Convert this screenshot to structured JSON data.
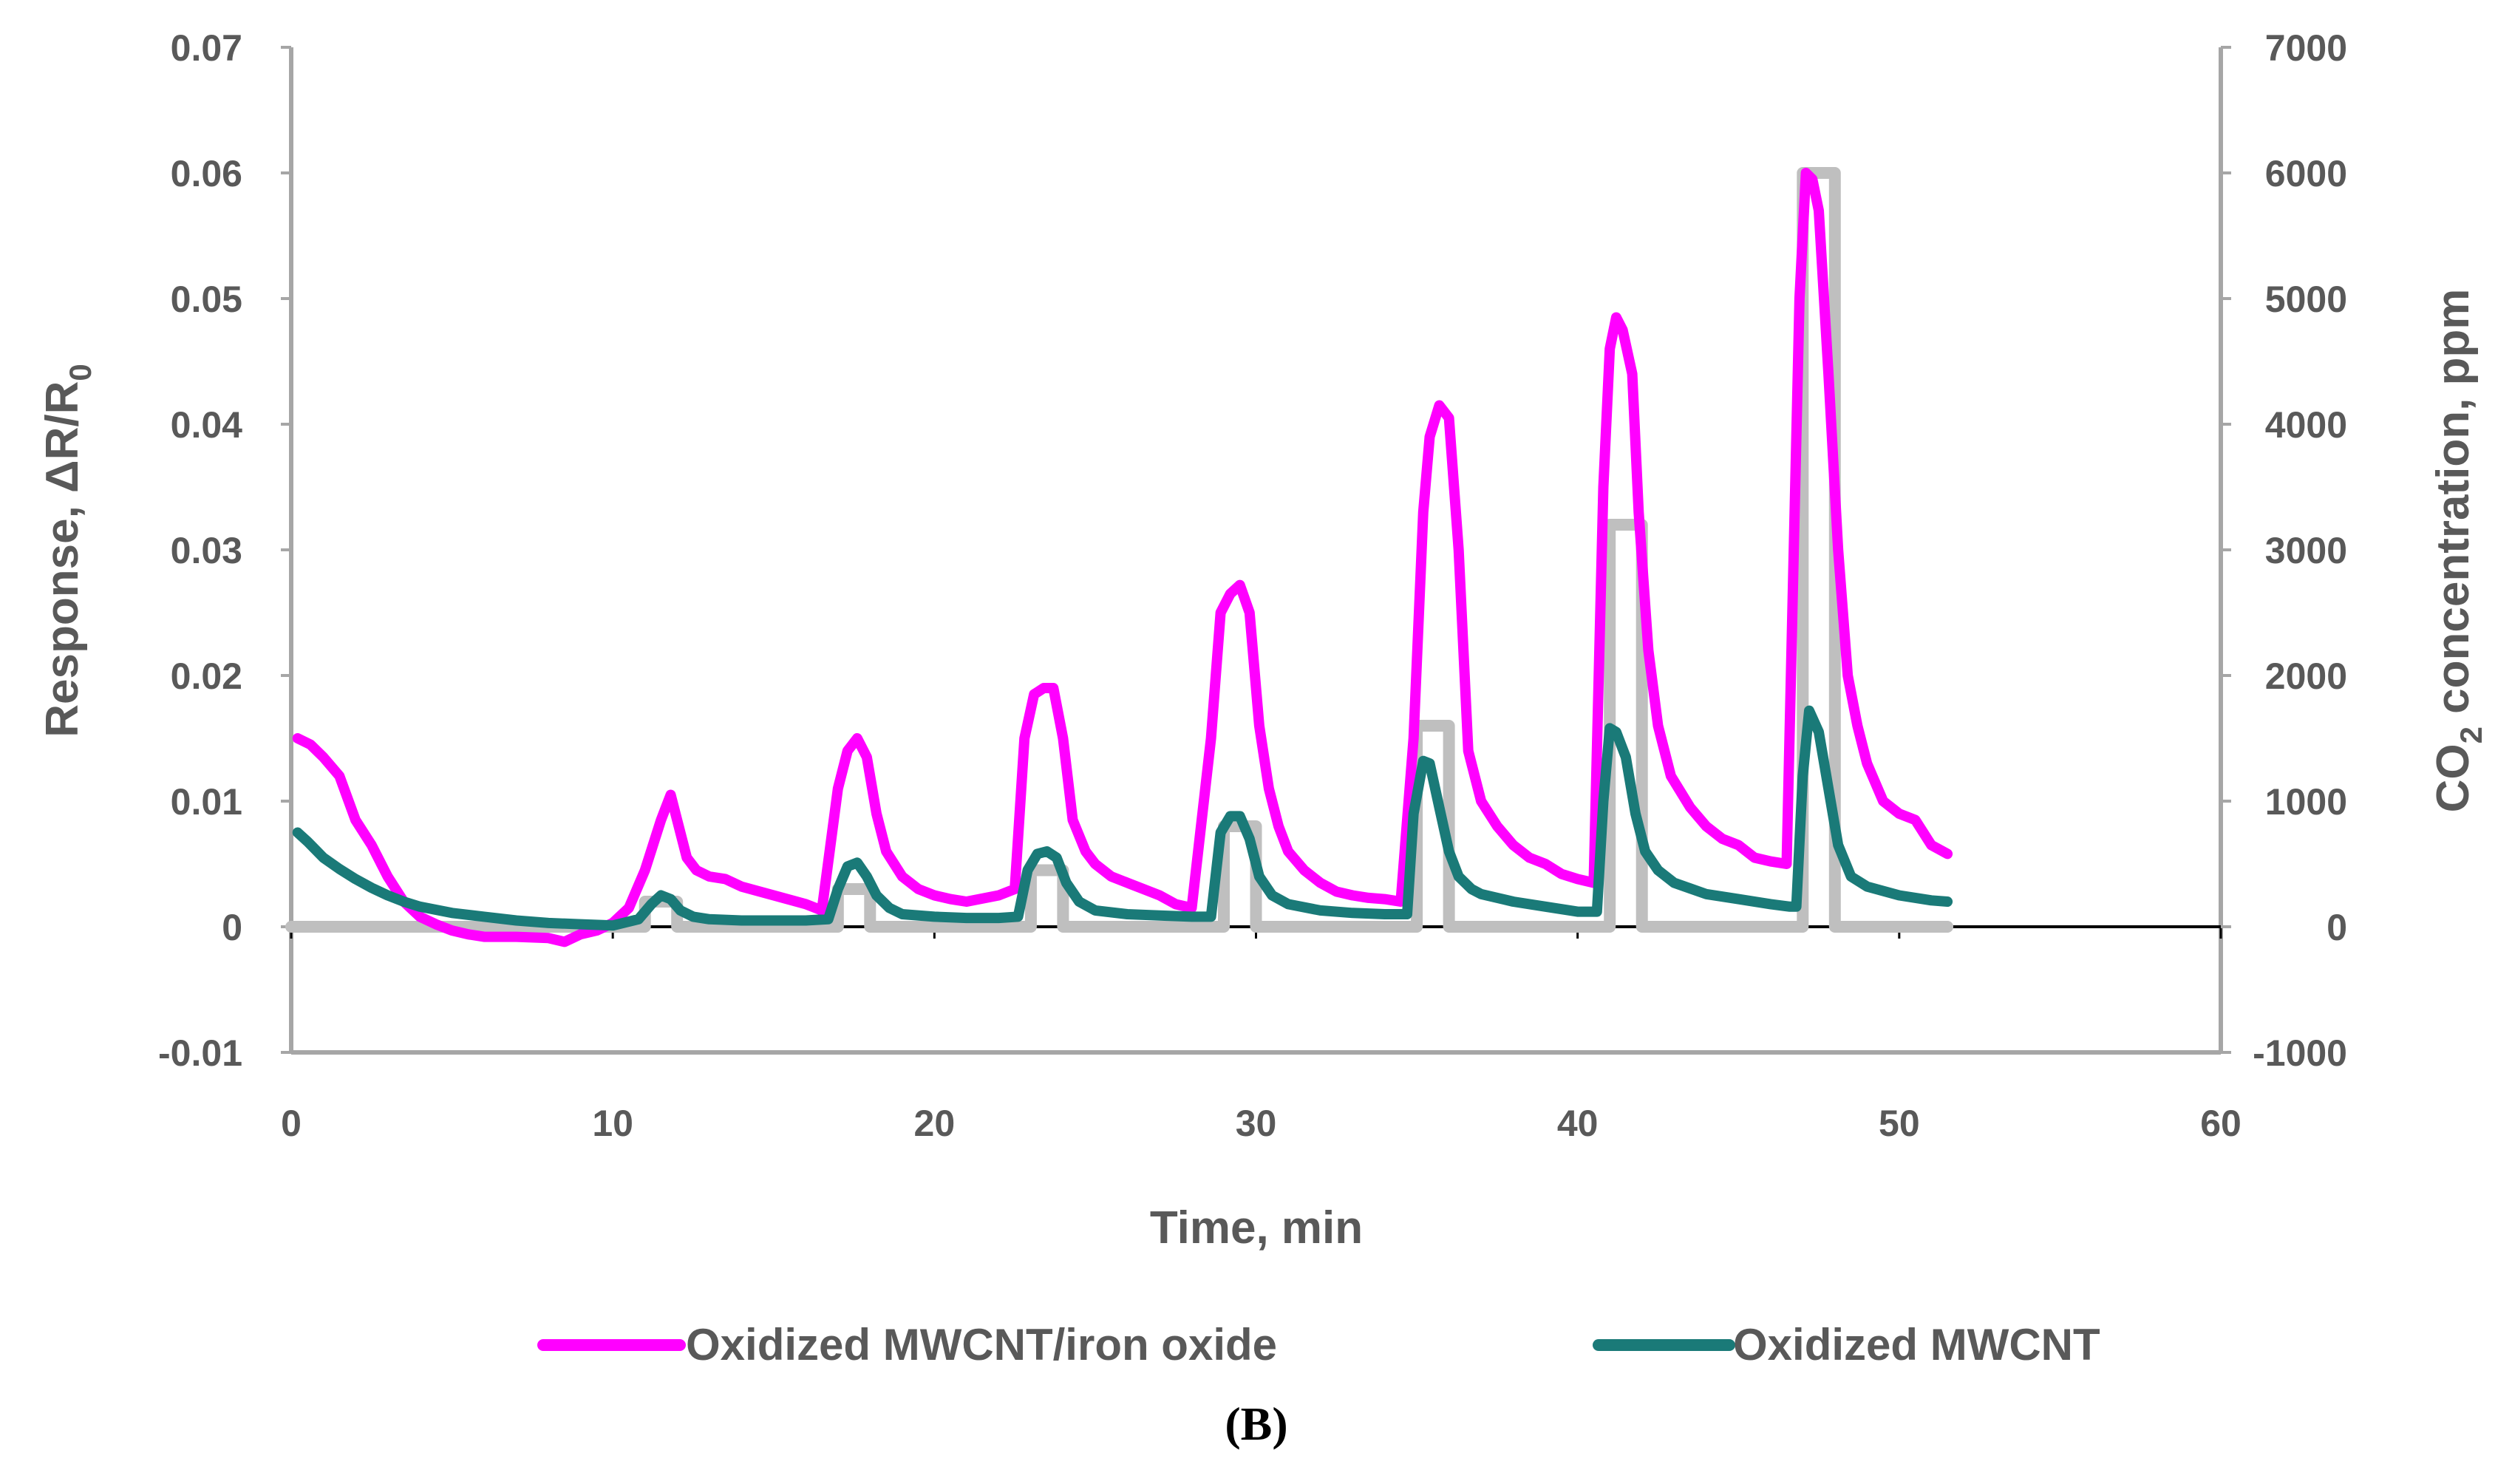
{
  "chart_data": {
    "type": "line",
    "panel_label": "(B)",
    "xlabel": "Time, min",
    "ylabel_prefix": "Response, ΔR/R",
    "ylabel_sub": "0",
    "y2label_prefix": "CO",
    "y2label_sub": "2",
    "y2label_suffix": " concentration, ppm",
    "xlim": [
      0,
      60
    ],
    "ylim": [
      -0.01,
      0.07
    ],
    "y2lim": [
      -1000,
      7000
    ],
    "x_ticks": [
      "0",
      "10",
      "20",
      "30",
      "40",
      "50",
      "60"
    ],
    "y_ticks": [
      "-0.01",
      "0",
      "0.01",
      "0.02",
      "0.03",
      "0.04",
      "0.05",
      "0.06",
      "0.07"
    ],
    "y2_ticks": [
      "-1000",
      "0",
      "1000",
      "2000",
      "3000",
      "4000",
      "5000",
      "6000",
      "7000"
    ],
    "series": [
      {
        "name": "Oxidized MWCNT/iron oxide",
        "axis": "left",
        "color": "#ff00ff",
        "x": [
          0.2,
          0.6,
          1.0,
          1.5,
          2.0,
          2.5,
          3.0,
          3.5,
          4.0,
          4.5,
          5.0,
          5.5,
          6.0,
          7.0,
          8.0,
          8.5,
          9.0,
          9.5,
          10.0,
          10.5,
          11.0,
          11.5,
          11.8,
          12.0,
          12.3,
          12.6,
          13.0,
          13.5,
          14.0,
          15.0,
          16.0,
          16.5,
          17.0,
          17.3,
          17.6,
          17.9,
          18.2,
          18.5,
          19.0,
          19.5,
          20.0,
          20.5,
          21.0,
          22.0,
          22.5,
          22.8,
          23.1,
          23.4,
          23.7,
          24.0,
          24.3,
          24.7,
          25.0,
          25.5,
          26.0,
          26.5,
          27.0,
          27.5,
          28.0,
          28.6,
          28.9,
          29.2,
          29.5,
          29.8,
          30.1,
          30.4,
          30.7,
          31.0,
          31.5,
          32.0,
          32.5,
          33.0,
          33.5,
          34.0,
          34.5,
          34.9,
          35.2,
          35.4,
          35.7,
          36.0,
          36.3,
          36.6,
          37.0,
          37.5,
          38.0,
          38.5,
          39.0,
          39.5,
          40.0,
          40.5,
          40.8,
          41.0,
          41.2,
          41.4,
          41.7,
          41.9,
          42.2,
          42.5,
          42.9,
          43.5,
          44.0,
          44.5,
          45.0,
          45.5,
          46.0,
          46.5,
          46.9,
          47.1,
          47.3,
          47.5,
          47.8,
          48.1,
          48.4,
          48.7,
          49.0,
          49.5,
          50.0,
          50.5,
          51.0,
          51.5
        ],
        "y": [
          0.015,
          0.0145,
          0.0135,
          0.012,
          0.0085,
          0.0065,
          0.004,
          0.002,
          0.0008,
          0.0002,
          -0.0003,
          -0.0006,
          -0.0008,
          -0.0008,
          -0.0009,
          -0.0012,
          -0.0006,
          -0.0003,
          0.0003,
          0.0015,
          0.0045,
          0.0085,
          0.0105,
          0.0085,
          0.0055,
          0.0045,
          0.004,
          0.0038,
          0.0032,
          0.0025,
          0.0018,
          0.0013,
          0.011,
          0.014,
          0.015,
          0.0135,
          0.009,
          0.006,
          0.004,
          0.003,
          0.0025,
          0.0022,
          0.002,
          0.0025,
          0.003,
          0.015,
          0.0185,
          0.019,
          0.019,
          0.015,
          0.0085,
          0.006,
          0.005,
          0.004,
          0.0035,
          0.003,
          0.0025,
          0.0018,
          0.0015,
          0.015,
          0.025,
          0.0265,
          0.0272,
          0.025,
          0.016,
          0.011,
          0.008,
          0.006,
          0.0045,
          0.0035,
          0.0028,
          0.0025,
          0.0023,
          0.0022,
          0.002,
          0.015,
          0.033,
          0.039,
          0.0415,
          0.0405,
          0.03,
          0.014,
          0.01,
          0.008,
          0.0065,
          0.0055,
          0.005,
          0.0042,
          0.0038,
          0.0035,
          0.035,
          0.046,
          0.0485,
          0.0475,
          0.044,
          0.033,
          0.022,
          0.016,
          0.012,
          0.0095,
          0.008,
          0.007,
          0.0065,
          0.0055,
          0.0052,
          0.005,
          0.05,
          0.06,
          0.0595,
          0.057,
          0.044,
          0.03,
          0.02,
          0.016,
          0.013,
          0.01,
          0.009,
          0.0085,
          0.0065,
          0.0058
        ]
      },
      {
        "name": "Oxidized MWCNT",
        "axis": "left",
        "color": "#1a7a78",
        "x": [
          0.2,
          0.5,
          1.0,
          1.5,
          2.0,
          2.5,
          3.0,
          3.5,
          4.0,
          5.0,
          6.0,
          7.0,
          8.0,
          9.0,
          10.0,
          10.8,
          11.2,
          11.5,
          11.8,
          12.1,
          12.5,
          13.0,
          14.0,
          15.0,
          16.0,
          16.7,
          17.0,
          17.3,
          17.6,
          17.9,
          18.2,
          18.6,
          19.0,
          20.0,
          21.0,
          22.0,
          22.6,
          22.9,
          23.2,
          23.5,
          23.8,
          24.1,
          24.5,
          25.0,
          26.0,
          27.0,
          28.0,
          28.6,
          28.9,
          29.2,
          29.5,
          29.8,
          30.1,
          30.5,
          31.0,
          32.0,
          33.0,
          34.0,
          34.7,
          34.9,
          35.2,
          35.4,
          35.7,
          36.0,
          36.3,
          36.7,
          37.0,
          38.0,
          39.0,
          40.0,
          40.6,
          40.8,
          41.0,
          41.2,
          41.5,
          41.8,
          42.1,
          42.5,
          43.0,
          44.0,
          45.0,
          46.0,
          46.6,
          46.8,
          47.0,
          47.2,
          47.5,
          47.8,
          48.1,
          48.5,
          49.0,
          50.0,
          51.0,
          51.5
        ],
        "y": [
          0.0075,
          0.0068,
          0.0055,
          0.0046,
          0.0038,
          0.0031,
          0.0025,
          0.002,
          0.0016,
          0.0011,
          0.0008,
          0.0005,
          0.0003,
          0.0002,
          0.0001,
          0.0006,
          0.0018,
          0.0025,
          0.0022,
          0.0013,
          0.0008,
          0.0006,
          0.0005,
          0.0005,
          0.0005,
          0.0006,
          0.003,
          0.0048,
          0.0051,
          0.004,
          0.0025,
          0.0015,
          0.001,
          0.0008,
          0.0007,
          0.0007,
          0.0008,
          0.0045,
          0.0058,
          0.006,
          0.0055,
          0.0035,
          0.002,
          0.0013,
          0.001,
          0.0009,
          0.0008,
          0.0008,
          0.0075,
          0.0088,
          0.0088,
          0.007,
          0.004,
          0.0025,
          0.0018,
          0.0013,
          0.0011,
          0.001,
          0.001,
          0.009,
          0.0132,
          0.013,
          0.0095,
          0.006,
          0.004,
          0.003,
          0.0026,
          0.002,
          0.0016,
          0.0012,
          0.0012,
          0.01,
          0.0158,
          0.0155,
          0.0135,
          0.009,
          0.006,
          0.0045,
          0.0035,
          0.0026,
          0.0022,
          0.0018,
          0.0016,
          0.0016,
          0.012,
          0.0172,
          0.0155,
          0.011,
          0.0065,
          0.004,
          0.0032,
          0.0025,
          0.0021,
          0.002
        ]
      },
      {
        "name": "CO2 concentration",
        "axis": "right",
        "color": "#bfbfbf",
        "x": [
          0,
          11.0,
          11.0,
          12.0,
          12.0,
          17.0,
          17.0,
          18.0,
          18.0,
          23.0,
          23.0,
          24.0,
          24.0,
          29.0,
          29.0,
          30.0,
          30.0,
          35.0,
          35.0,
          36.0,
          36.0,
          41.0,
          41.0,
          42.0,
          42.0,
          47.0,
          47.0,
          48.0,
          48.0,
          51.5
        ],
        "y": [
          0,
          0,
          200,
          200,
          0,
          0,
          300,
          300,
          0,
          0,
          450,
          450,
          0,
          0,
          800,
          800,
          0,
          0,
          1600,
          1600,
          0,
          0,
          3200,
          3200,
          0,
          0,
          6000,
          6000,
          0,
          0
        ]
      }
    ],
    "legend_entries": [
      "Oxidized MWCNT/iron oxide",
      "Oxidized MWCNT"
    ],
    "legend_position": "bottom"
  }
}
